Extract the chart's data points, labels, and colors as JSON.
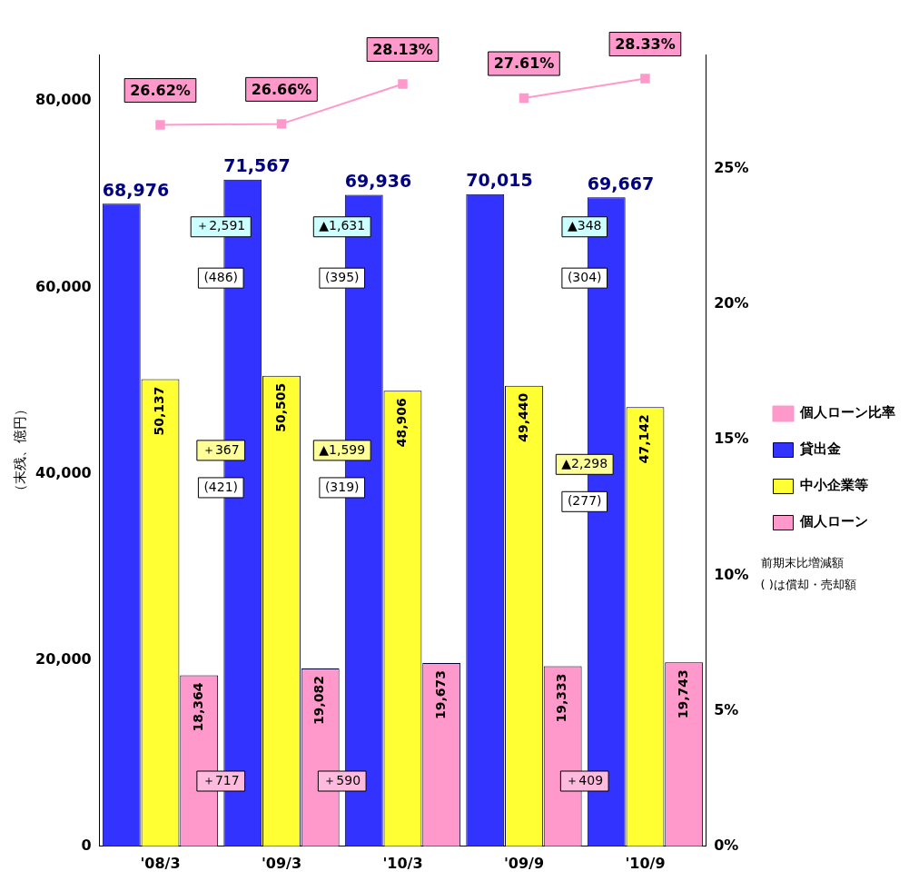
{
  "chart_data": {
    "type": "bar",
    "ylabel": "（末残、億円）",
    "categories": [
      "'08/3",
      "'09/3",
      "'10/3",
      "'09/9",
      "'10/9"
    ],
    "series": [
      {
        "name": "貸出金",
        "color": "#3333ff",
        "values": [
          68976,
          71567,
          69936,
          70015,
          69667
        ],
        "value_labels": [
          "68,976",
          "71,567",
          "69,936",
          "70,015",
          "69,667"
        ]
      },
      {
        "name": "中小企業等",
        "color": "#ffff33",
        "values": [
          50137,
          50505,
          48906,
          49440,
          47142
        ],
        "value_labels": [
          "50,137",
          "50,505",
          "48,906",
          "49,440",
          "47,142"
        ]
      },
      {
        "name": "個人ローン",
        "color": "#ff99cc",
        "values": [
          18364,
          19082,
          19673,
          19333,
          19743
        ],
        "value_labels": [
          "18,364",
          "19,082",
          "19,673",
          "19,333",
          "19,743"
        ]
      },
      {
        "name": "個人ローン比率",
        "type": "line",
        "axis": "y2",
        "color": "#ff99cc",
        "values": [
          26.62,
          26.66,
          28.13,
          null,
          null
        ],
        "value_labels": [
          "26.62%",
          "26.66%",
          "28.13%",
          null,
          null
        ]
      },
      {
        "type": "line",
        "axis": "y2",
        "color": "#ff99cc",
        "values": [
          null,
          null,
          null,
          27.61,
          28.33
        ],
        "value_labels": [
          null,
          null,
          null,
          "27.61%",
          "28.33%"
        ]
      }
    ],
    "marker": "square",
    "legend": "right",
    "grid": false,
    "ylim": [
      0,
      85000
    ],
    "yticks": [
      {
        "value": 0,
        "label": "0"
      },
      {
        "value": 20000,
        "label": "20,000"
      },
      {
        "value": 40000,
        "label": "40,000"
      },
      {
        "value": 60000,
        "label": "60,000"
      },
      {
        "value": 80000,
        "label": "80,000"
      }
    ],
    "y2lim": [
      0,
      29.22
    ],
    "y2ticks": [
      {
        "value": 0,
        "label": "0%"
      },
      {
        "value": 5,
        "label": "5%"
      },
      {
        "value": 10,
        "label": "10%"
      },
      {
        "value": 15,
        "label": "15%"
      },
      {
        "value": 20,
        "label": "20%"
      },
      {
        "value": 25,
        "label": "25%"
      }
    ],
    "annotations": [
      "＋2,591",
      "(486)",
      "▲1,631",
      "(395)",
      "▲348",
      "(304)",
      "＋367",
      "(421)",
      "▲1,599",
      "(319)",
      "▲2,298",
      "(277)",
      "＋717",
      "＋590",
      "＋409",
      "前期末比増減額",
      "( )は償却・売却額"
    ]
  }
}
